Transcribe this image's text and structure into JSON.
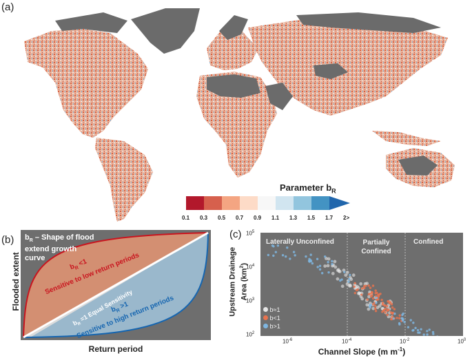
{
  "panel_a": {
    "label": "(a)",
    "colorbar": {
      "title": "Parameter b",
      "title_sub": "R",
      "ticks": [
        "0.1",
        "0.3",
        "0.5",
        "0.7",
        "0.9",
        "1.1",
        "1.3",
        "1.5",
        "1.7",
        "2>"
      ],
      "colors": [
        "#b2182b",
        "#d6604d",
        "#f4a582",
        "#fddbc7",
        "#f7f7f7",
        "#d1e5f0",
        "#92c5de",
        "#4393c3",
        "#2166ac"
      ]
    }
  },
  "panel_b": {
    "label": "(b)",
    "title_main": "b",
    "title_sub": "R",
    "title_rest1": " – Shape of flood",
    "title_line2": "extend growth",
    "title_line3": "curve",
    "red_label_main": "b",
    "red_label_sub": "R",
    "red_label_rest": " <1",
    "red_desc": "Sensitive to low return periods",
    "white_label": "b",
    "white_label_sub": "R",
    "white_label_rest": " =1 Equal Sensitivity",
    "blue_label_main": "b",
    "blue_label_sub": "R",
    "blue_label_rest": " >1",
    "blue_desc": "Sensitive to high return periods",
    "xlabel": "Return period",
    "ylabel": "Flooded extent",
    "colors": {
      "red": "#c9141e",
      "red_fill": "#d38f72",
      "blue": "#1565b0",
      "blue_fill": "#9ab8cc",
      "bg": "#6e6e6e"
    }
  },
  "panel_c": {
    "label": "(c)",
    "regions": [
      "Laterally Unconfined",
      "Partially",
      "Confined",
      "Confined"
    ],
    "xlabel": "Channel Slope (m m",
    "xlabel_sup": "-1",
    "xlabel_end": ")",
    "ylabel_line1": "Upstream Drainage",
    "ylabel_line2": "Area (km",
    "ylabel_sup": "2",
    "ylabel_end": ")",
    "xticks": [
      {
        "base": "10",
        "exp": "-6"
      },
      {
        "base": "10",
        "exp": "-4"
      },
      {
        "base": "10",
        "exp": "-2"
      },
      {
        "base": "10",
        "exp": "0"
      }
    ],
    "yticks": [
      {
        "base": "10",
        "exp": "5"
      },
      {
        "base": "10",
        "exp": "4"
      },
      {
        "base": "10",
        "exp": "3"
      },
      {
        "base": "10",
        "exp": "2"
      }
    ],
    "legend": [
      {
        "label": "b≈1",
        "color": "#e6e6e6"
      },
      {
        "label": "b<1",
        "color": "#e8734f"
      },
      {
        "label": "b>1",
        "color": "#7fb6e0"
      }
    ],
    "bg": "#6e6e6e"
  },
  "chart_data": {
    "type": "scatter",
    "xscale": "log",
    "yscale": "log",
    "xlim": [
      1e-07,
      1
    ],
    "ylim": [
      100,
      100000
    ],
    "xlabel": "Channel Slope (m m-1)",
    "ylabel": "Upstream Drainage Area (km2)",
    "series": [
      {
        "name": "b≈1",
        "points": [
          [
            5e-05,
            8000
          ],
          [
            0.0001,
            4000
          ],
          [
            0.0002,
            3000
          ],
          [
            0.0003,
            2000
          ],
          [
            0.0005,
            1500
          ],
          [
            0.001,
            1000
          ],
          [
            0.002,
            700
          ],
          [
            3e-05,
            12000
          ],
          [
            8e-05,
            6000
          ],
          [
            0.0004,
            2500
          ],
          [
            0.0008,
            900
          ],
          [
            0.003,
            500
          ]
        ]
      },
      {
        "name": "b<1",
        "points": [
          [
            0.0003,
            2500
          ],
          [
            0.0006,
            1800
          ],
          [
            0.001,
            1200
          ],
          [
            0.002,
            800
          ],
          [
            0.003,
            600
          ],
          [
            0.0015,
            1000
          ],
          [
            0.0008,
            1500
          ],
          [
            0.004,
            450
          ],
          [
            0.005,
            400
          ],
          [
            0.0005,
            2000
          ],
          [
            0.0012,
            700
          ],
          [
            0.0025,
            550
          ]
        ]
      },
      {
        "name": "b>1",
        "points": [
          [
            3e-07,
            30000
          ],
          [
            1e-06,
            25000
          ],
          [
            5e-06,
            20000
          ],
          [
            1e-05,
            15000
          ],
          [
            2e-05,
            10000
          ],
          [
            0.0001,
            5000
          ],
          [
            0.001,
            900
          ],
          [
            0.01,
            250
          ],
          [
            0.02,
            180
          ],
          [
            0.05,
            130
          ],
          [
            0.1,
            110
          ],
          [
            0.005,
            350
          ]
        ]
      }
    ]
  }
}
